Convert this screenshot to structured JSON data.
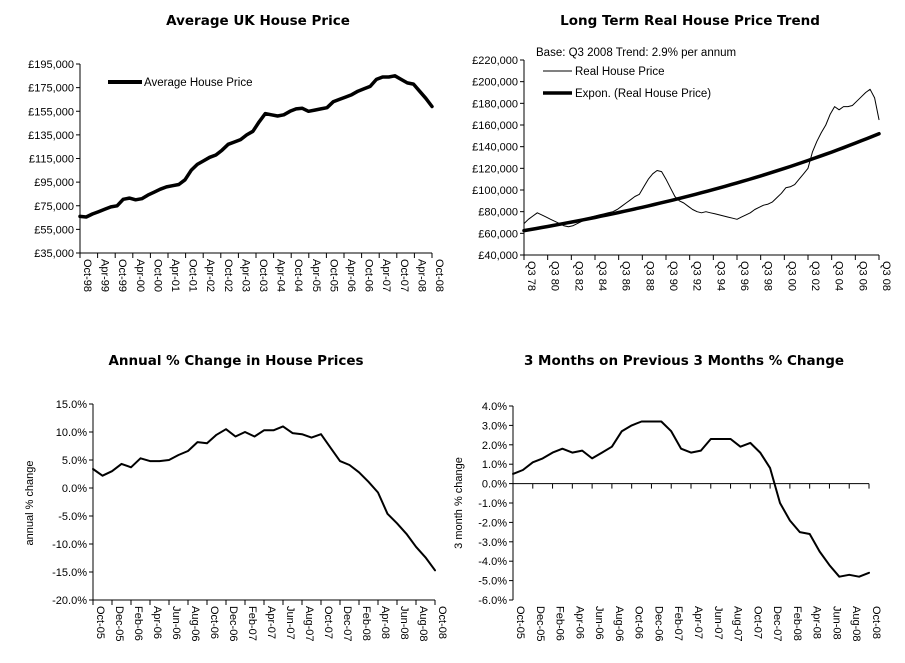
{
  "chart_data": [
    {
      "id": "avg-price",
      "type": "line",
      "title": "Average UK House Price",
      "xlabel": "",
      "ylabel": "",
      "ylim": [
        35000,
        195000
      ],
      "yticks": [
        "£195,000",
        "£175,000",
        "£155,000",
        "£135,000",
        "£115,000",
        "£95,000",
        "£75,000",
        "£55,000",
        "£35,000"
      ],
      "ytick_values": [
        195000,
        175000,
        155000,
        135000,
        115000,
        95000,
        75000,
        55000,
        35000
      ],
      "categories": [
        "Oct-98",
        "Apr-99",
        "Oct-99",
        "Apr-00",
        "Oct-00",
        "Apr-01",
        "Oct-01",
        "Apr-02",
        "Oct-02",
        "Apr-03",
        "Oct-03",
        "Apr-04",
        "Oct-04",
        "Apr-05",
        "Oct-05",
        "Apr-06",
        "Oct-06",
        "Apr-07",
        "Oct-07",
        "Apr-08",
        "Oct-08"
      ],
      "legend": {
        "position": "top-left",
        "entries": [
          "Average House Price"
        ]
      },
      "grid": false,
      "series": [
        {
          "name": "Average House Price",
          "style": "thick",
          "values": [
            66000,
            65500,
            68000,
            70000,
            72000,
            74000,
            75000,
            80500,
            81500,
            80000,
            81000,
            84000,
            86500,
            89000,
            91000,
            92000,
            93000,
            97000,
            105000,
            110000,
            113000,
            116000,
            118000,
            122000,
            127000,
            129000,
            131000,
            135000,
            138000,
            146000,
            153000,
            152000,
            151000,
            152000,
            155000,
            157000,
            157500,
            155000,
            156000,
            157000,
            158000,
            163000,
            165000,
            167000,
            169000,
            172000,
            174000,
            176000,
            182000,
            184000,
            184000,
            185000,
            182000,
            179000,
            178000,
            172000,
            166000,
            159000
          ]
        }
      ]
    },
    {
      "id": "real-trend",
      "type": "line",
      "title": "Long Term Real House Price Trend",
      "annotation": "Base: Q3 2008 Trend: 2.9% per annum",
      "xlabel": "",
      "ylabel": "",
      "ylim": [
        40000,
        220000
      ],
      "yticks": [
        "£220,000",
        "£200,000",
        "£180,000",
        "£160,000",
        "£140,000",
        "£120,000",
        "£100,000",
        "£80,000",
        "£60,000",
        "£40,000"
      ],
      "ytick_values": [
        220000,
        200000,
        180000,
        160000,
        140000,
        120000,
        100000,
        80000,
        60000,
        40000
      ],
      "categories": [
        "Q3 78",
        "Q3 80",
        "Q3 82",
        "Q3 84",
        "Q3 86",
        "Q3 88",
        "Q3 90",
        "Q3 92",
        "Q3 94",
        "Q3 96",
        "Q3 98",
        "Q3 00",
        "Q3 02",
        "Q3 04",
        "Q3 06",
        "Q3 08"
      ],
      "legend": {
        "position": "top-left",
        "entries": [
          "Real House Price",
          "Expon. (Real House Price)"
        ]
      },
      "grid": false,
      "series": [
        {
          "name": "Real House Price",
          "style": "thin",
          "values": [
            69000,
            73000,
            76000,
            79000,
            77000,
            75000,
            73000,
            71000,
            69000,
            67000,
            66000,
            67000,
            69000,
            71000,
            73000,
            75000,
            76000,
            77000,
            78000,
            79000,
            80000,
            82000,
            85000,
            88000,
            91000,
            94000,
            96000,
            103000,
            110000,
            115000,
            118000,
            117000,
            110000,
            102000,
            94000,
            90000,
            88000,
            85000,
            82000,
            80000,
            79000,
            80000,
            79000,
            78000,
            77000,
            76000,
            75000,
            74000,
            73000,
            75000,
            77000,
            79000,
            82000,
            84000,
            86000,
            87000,
            89000,
            93000,
            97000,
            102000,
            103000,
            105000,
            110000,
            115000,
            120000,
            135000,
            145000,
            153000,
            160000,
            170000,
            177000,
            174000,
            177000,
            177000,
            178000,
            182000,
            186000,
            190000,
            193000,
            185000,
            165000
          ]
        },
        {
          "name": "Expon. (Real House Price)",
          "style": "thick",
          "trend": {
            "start": 62500,
            "end": 152000
          }
        }
      ]
    },
    {
      "id": "annual-change",
      "type": "line",
      "title": "Annual % Change in House Prices",
      "xlabel": "",
      "ylabel": "annual % change",
      "ylim": [
        -20,
        15
      ],
      "yticks": [
        "15.0%",
        "10.0%",
        "5.0%",
        "0.0%",
        "-5.0%",
        "-10.0%",
        "-15.0%",
        "-20.0%"
      ],
      "ytick_values": [
        15,
        10,
        5,
        0,
        -5,
        -10,
        -15,
        -20
      ],
      "categories": [
        "Oct-05",
        "Dec-05",
        "Feb-06",
        "Apr-06",
        "Jun-06",
        "Aug-06",
        "Oct-06",
        "Dec-06",
        "Feb-07",
        "Apr-07",
        "Jun-07",
        "Aug-07",
        "Oct-07",
        "Dec-07",
        "Feb-08",
        "Apr-08",
        "Jun-08",
        "Aug-08",
        "Oct-08"
      ],
      "grid": false,
      "series": [
        {
          "name": "annual % change",
          "style": "medium",
          "values": [
            3.4,
            2.2,
            3.0,
            4.3,
            3.7,
            5.3,
            4.8,
            4.8,
            5.0,
            5.9,
            6.6,
            8.2,
            8.0,
            9.5,
            10.5,
            9.2,
            10.0,
            9.2,
            10.3,
            10.3,
            11.0,
            9.8,
            9.6,
            9.0,
            9.6,
            7.2,
            4.8,
            4.1,
            2.8,
            1.1,
            -0.8,
            -4.6,
            -6.3,
            -8.2,
            -10.5,
            -12.4,
            -14.7
          ]
        }
      ]
    },
    {
      "id": "three-month-change",
      "type": "line",
      "title": "3 Months on Previous 3 Months % Change",
      "xlabel": "",
      "ylabel": "3 month % change",
      "ylim": [
        -6,
        4
      ],
      "yticks": [
        "4.0%",
        "3.0%",
        "2.0%",
        "1.0%",
        "0.0%",
        "-1.0%",
        "-2.0%",
        "-3.0%",
        "-4.0%",
        "-5.0%",
        "-6.0%"
      ],
      "ytick_values": [
        4,
        3,
        2,
        1,
        0,
        -1,
        -2,
        -3,
        -4,
        -5,
        -6
      ],
      "categories": [
        "Oct-05",
        "Dec-05",
        "Feb-06",
        "Apr-06",
        "Jun-06",
        "Aug-06",
        "Oct-06",
        "Dec-06",
        "Feb-07",
        "Apr-07",
        "Jun-07",
        "Aug-07",
        "Oct-07",
        "Dec-07",
        "Feb-08",
        "Apr-08",
        "Jun-08",
        "Aug-08",
        "Oct-08"
      ],
      "grid": false,
      "series": [
        {
          "name": "3 month % change",
          "style": "medium",
          "values": [
            0.5,
            0.7,
            1.1,
            1.3,
            1.6,
            1.8,
            1.6,
            1.7,
            1.3,
            1.6,
            1.9,
            2.7,
            3.0,
            3.2,
            3.2,
            3.2,
            2.7,
            1.8,
            1.6,
            1.7,
            2.3,
            2.3,
            2.3,
            1.9,
            2.1,
            1.6,
            0.8,
            -1.0,
            -1.9,
            -2.5,
            -2.6,
            -3.5,
            -4.2,
            -4.8,
            -4.7,
            -4.8,
            -4.6
          ]
        }
      ]
    }
  ]
}
